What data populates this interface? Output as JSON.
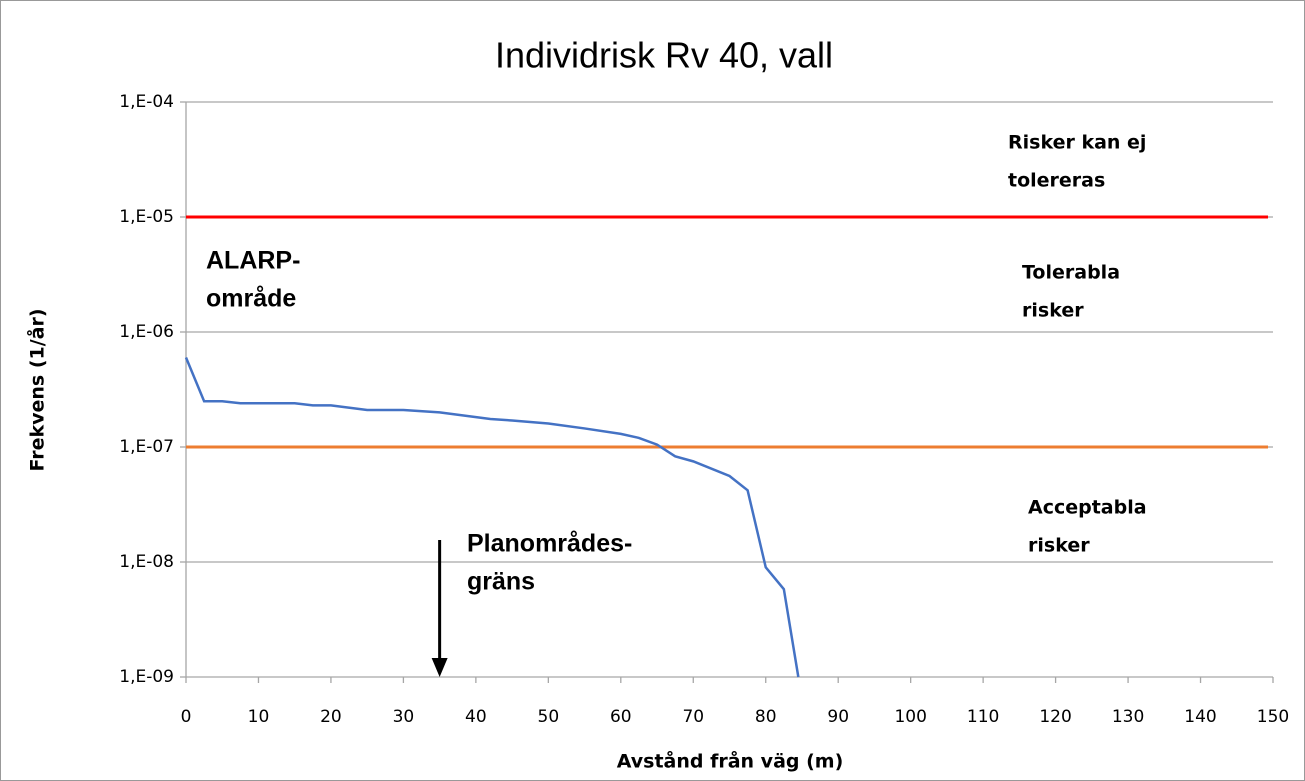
{
  "chart_data": {
    "type": "line",
    "title": "Individrisk Rv 40, vall",
    "x_label": "Avstånd från väg (m)",
    "y_label": "Frekvens (1/år)",
    "yscale": "log",
    "x": [
      0,
      2.5,
      5,
      7.5,
      15,
      17.5,
      20,
      25,
      30,
      35,
      42,
      45,
      50,
      55,
      60,
      62.5,
      65,
      67.5,
      70,
      75,
      77.5,
      80,
      82.5,
      84.5
    ],
    "series": [
      {
        "name": "Individrisk",
        "color": "#4472c4",
        "values": [
          6e-07,
          2.5e-07,
          2.5e-07,
          2.4e-07,
          2.4e-07,
          2.3e-07,
          2.3e-07,
          2.1e-07,
          2.1e-07,
          2e-07,
          1.75e-07,
          1.7e-07,
          1.6e-07,
          1.45e-07,
          1.3e-07,
          1.2e-07,
          1.05e-07,
          8.3e-08,
          7.5e-08,
          5.6e-08,
          4.2e-08,
          9e-09,
          5.8e-09,
          1e-09
        ]
      }
    ],
    "hlines": [
      {
        "value": 1e-05,
        "color": "#ff0000"
      },
      {
        "value": 1e-07,
        "color": "#ed7d31"
      }
    ],
    "arrow": {
      "x": 35
    },
    "annotations": [
      [
        "Risker kan ej",
        "tolereras"
      ],
      [
        "Tolerabla",
        "risker"
      ],
      [
        "Acceptabla",
        "risker"
      ],
      [
        "ALARP-",
        "område"
      ],
      [
        "Planområdes-",
        "gräns"
      ]
    ],
    "xlim": [
      0,
      150
    ],
    "xticks": [
      0,
      10,
      20,
      30,
      40,
      50,
      60,
      70,
      80,
      90,
      100,
      110,
      120,
      130,
      140,
      150
    ],
    "ylim": [
      1e-09,
      0.0001
    ],
    "yticks": [
      {
        "value": 1e-09,
        "label": "1,E-09"
      },
      {
        "value": 1e-08,
        "label": "1,E-08"
      },
      {
        "value": 1e-07,
        "label": "1,E-07"
      },
      {
        "value": 1e-06,
        "label": "1,E-06"
      },
      {
        "value": 1e-05,
        "label": "1,E-05"
      },
      {
        "value": 0.0001,
        "label": "1,E-04"
      }
    ],
    "grid": true
  }
}
